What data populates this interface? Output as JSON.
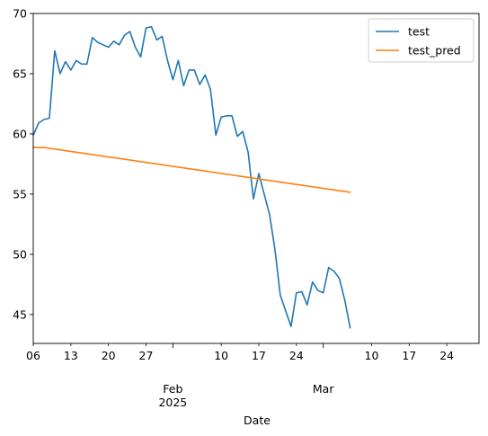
{
  "chart_data": {
    "type": "line",
    "title": "",
    "xlabel": "Date",
    "ylabel": "",
    "ylim": [
      42.6,
      70
    ],
    "xlim": [
      "2025-01-06",
      "2025-03-30"
    ],
    "grid": false,
    "legend_position": "top-right",
    "y_ticks": [
      45,
      50,
      55,
      60,
      65,
      70
    ],
    "x_ticks_minor": [
      {
        "date": "2025-01-06",
        "label": "06"
      },
      {
        "date": "2025-01-13",
        "label": "13"
      },
      {
        "date": "2025-01-20",
        "label": "20"
      },
      {
        "date": "2025-01-27",
        "label": "27"
      },
      {
        "date": "2025-02-10",
        "label": "10"
      },
      {
        "date": "2025-02-17",
        "label": "17"
      },
      {
        "date": "2025-02-24",
        "label": "24"
      },
      {
        "date": "2025-03-10",
        "label": "10"
      },
      {
        "date": "2025-03-17",
        "label": "17"
      },
      {
        "date": "2025-03-24",
        "label": "24"
      }
    ],
    "x_ticks_major": [
      {
        "date": "2025-02-01",
        "label": "Feb",
        "sublabel": "2025"
      },
      {
        "date": "2025-03-01",
        "label": "Mar",
        "sublabel": ""
      }
    ],
    "series": [
      {
        "name": "test",
        "color": "#1f77b4",
        "points": [
          [
            "2025-01-06",
            59.9
          ],
          [
            "2025-01-07",
            60.9
          ],
          [
            "2025-01-08",
            61.2
          ],
          [
            "2025-01-09",
            61.3
          ],
          [
            "2025-01-10",
            66.9
          ],
          [
            "2025-01-11",
            65.0
          ],
          [
            "2025-01-12",
            66.0
          ],
          [
            "2025-01-13",
            65.3
          ],
          [
            "2025-01-14",
            66.1
          ],
          [
            "2025-01-15",
            65.8
          ],
          [
            "2025-01-16",
            65.8
          ],
          [
            "2025-01-17",
            68.0
          ],
          [
            "2025-01-18",
            67.6
          ],
          [
            "2025-01-19",
            67.4
          ],
          [
            "2025-01-20",
            67.2
          ],
          [
            "2025-01-21",
            67.7
          ],
          [
            "2025-01-22",
            67.4
          ],
          [
            "2025-01-23",
            68.2
          ],
          [
            "2025-01-24",
            68.5
          ],
          [
            "2025-01-25",
            67.2
          ],
          [
            "2025-01-26",
            66.4
          ],
          [
            "2025-01-27",
            68.8
          ],
          [
            "2025-01-28",
            68.9
          ],
          [
            "2025-01-29",
            67.8
          ],
          [
            "2025-01-30",
            68.1
          ],
          [
            "2025-01-31",
            66.1
          ],
          [
            "2025-02-01",
            64.5
          ],
          [
            "2025-02-02",
            66.1
          ],
          [
            "2025-02-03",
            64.0
          ],
          [
            "2025-02-04",
            65.3
          ],
          [
            "2025-02-05",
            65.3
          ],
          [
            "2025-02-06",
            64.1
          ],
          [
            "2025-02-07",
            64.9
          ],
          [
            "2025-02-08",
            63.7
          ],
          [
            "2025-02-09",
            59.9
          ],
          [
            "2025-02-10",
            61.4
          ],
          [
            "2025-02-11",
            61.5
          ],
          [
            "2025-02-12",
            61.5
          ],
          [
            "2025-02-13",
            59.8
          ],
          [
            "2025-02-14",
            60.2
          ],
          [
            "2025-02-15",
            58.5
          ],
          [
            "2025-02-16",
            54.6
          ],
          [
            "2025-02-17",
            56.7
          ],
          [
            "2025-02-18",
            55.0
          ],
          [
            "2025-02-19",
            53.3
          ],
          [
            "2025-02-20",
            50.4
          ],
          [
            "2025-02-21",
            46.6
          ],
          [
            "2025-02-22",
            45.3
          ],
          [
            "2025-02-23",
            44.0
          ],
          [
            "2025-02-24",
            46.8
          ],
          [
            "2025-02-25",
            46.9
          ],
          [
            "2025-02-26",
            45.8
          ],
          [
            "2025-02-27",
            47.7
          ],
          [
            "2025-02-28",
            47.0
          ],
          [
            "2025-03-01",
            46.8
          ],
          [
            "2025-03-02",
            48.9
          ],
          [
            "2025-03-03",
            48.6
          ],
          [
            "2025-03-04",
            48.0
          ],
          [
            "2025-03-05",
            46.2
          ],
          [
            "2025-03-06",
            43.9
          ]
        ]
      },
      {
        "name": "test_pred",
        "color": "#ff7f0e",
        "points": [
          [
            "2025-01-06",
            58.9
          ],
          [
            "2025-01-07",
            58.85
          ],
          [
            "2025-01-08",
            58.87
          ],
          [
            "2025-01-09",
            58.8
          ],
          [
            "2025-01-10",
            58.74
          ],
          [
            "2025-03-06",
            55.15
          ]
        ]
      }
    ]
  }
}
